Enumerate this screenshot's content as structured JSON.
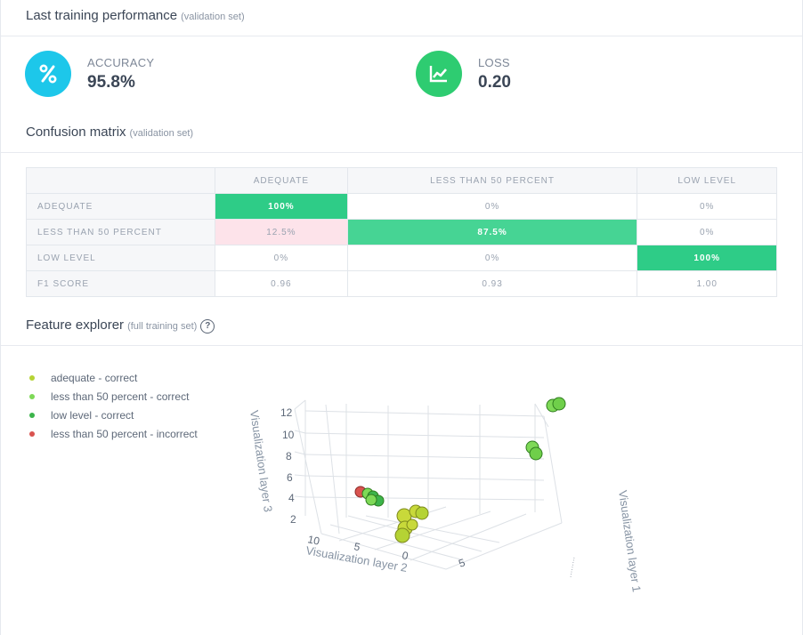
{
  "performance": {
    "title": "Last training performance",
    "subtitle": "(validation set)",
    "accuracy": {
      "label": "ACCURACY",
      "value": "95.8%",
      "icon": "percent-icon",
      "color": "#1dc7ea"
    },
    "loss": {
      "label": "LOSS",
      "value": "0.20",
      "icon": "line-chart-icon",
      "color": "#2ecc71"
    }
  },
  "confusion": {
    "title": "Confusion matrix",
    "subtitle": "(validation set)",
    "columns": [
      "ADEQUATE",
      "LESS THAN 50 PERCENT",
      "LOW LEVEL"
    ],
    "rows": [
      {
        "label": "ADEQUATE",
        "cells": [
          "100%",
          "0%",
          "0%"
        ]
      },
      {
        "label": "LESS THAN 50 PERCENT",
        "cells": [
          "12.5%",
          "87.5%",
          "0%"
        ]
      },
      {
        "label": "LOW LEVEL",
        "cells": [
          "0%",
          "0%",
          "100%"
        ]
      }
    ],
    "f1": {
      "label": "F1 SCORE",
      "cells": [
        "0.96",
        "0.93",
        "1.00"
      ]
    }
  },
  "explorer": {
    "title": "Feature explorer",
    "subtitle": "(full training set)",
    "help_icon": "question-circle-icon",
    "legend": [
      {
        "label": "adequate - correct",
        "color": "#b5d334"
      },
      {
        "label": "less than 50 percent - correct",
        "color": "#7ed957"
      },
      {
        "label": "low level - correct",
        "color": "#3cb44b"
      },
      {
        "label": "less than 50 percent - incorrect",
        "color": "#d9534f"
      }
    ],
    "axes": {
      "x_label": "Visualization layer 1",
      "y_label": "Visualization layer 2",
      "z_label": "Visualization layer 3",
      "z_ticks": [
        "12",
        "10",
        "8",
        "6",
        "4",
        "2"
      ],
      "y_ticks": [
        "10",
        "5",
        "0"
      ],
      "x_ticks": [
        "5"
      ]
    }
  }
}
